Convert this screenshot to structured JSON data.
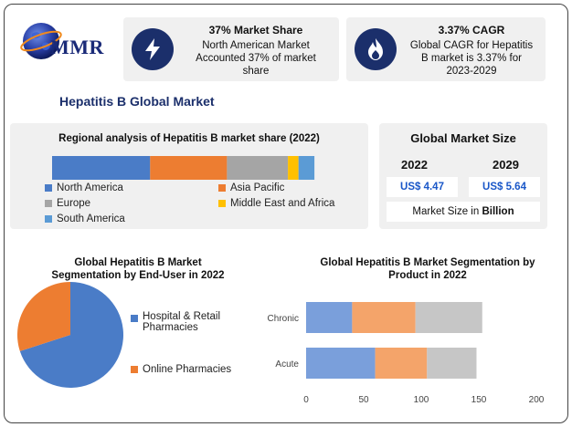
{
  "brand": {
    "logo_text": "MMR"
  },
  "kpis": [
    {
      "title": "37% Market Share",
      "body": [
        "North American Market",
        "Accounted 37% of market",
        "share"
      ],
      "icon": "lightning-icon"
    },
    {
      "title": "3.37% CAGR",
      "body": [
        "Global CAGR for Hepatitis",
        "B market is 3.37% for",
        "2023-2029"
      ],
      "icon": "flame-icon"
    }
  ],
  "main_title": "Hepatitis B Global Market",
  "regional": {
    "title": "Regional analysis of Hepatitis B market share (2022)",
    "legend": [
      "North America",
      "Asia Pacific",
      "Europe",
      "Middle East and Africa",
      "South America"
    ]
  },
  "market_size": {
    "title": "Global Market Size",
    "years": [
      "2022",
      "2029"
    ],
    "values": [
      "US$ 4.47",
      "US$ 5.64"
    ],
    "note_prefix": "Market Size in ",
    "note_unit": "Billion"
  },
  "end_user": {
    "title_line1": "Global Hepatitis B Market",
    "title_line2": "Segmentation by End-User in 2022",
    "legend": [
      "Hospital & Retail",
      "Pharmacies",
      "Online Pharmacies"
    ]
  },
  "product": {
    "title_line1": "Global Hepatitis B Market Segmentation by",
    "title_line2": "Product in 2022"
  },
  "colors": {
    "blue": "#4a7cc7",
    "orange": "#ed7d31",
    "gray": "#a5a5a5",
    "yellow": "#ffc000",
    "lightblue": "#5b9bd5",
    "navy": "#1b2f6b",
    "prod_blue": "#7a9fdb",
    "prod_orange": "#f4a46a",
    "prod_gray": "#c6c6c6"
  },
  "chart_data": [
    {
      "type": "bar",
      "orientation": "horizontal-stacked",
      "title": "Regional analysis of Hepatitis B market share (2022)",
      "categories": [
        "2022"
      ],
      "series": [
        {
          "name": "North America",
          "values": [
            37
          ]
        },
        {
          "name": "Asia Pacific",
          "values": [
            29
          ]
        },
        {
          "name": "Europe",
          "values": [
            23
          ]
        },
        {
          "name": "Middle East and Africa",
          "values": [
            4
          ]
        },
        {
          "name": "South America",
          "values": [
            6
          ]
        }
      ],
      "legend_position": "bottom"
    },
    {
      "type": "pie",
      "title": "Global Hepatitis B Market Segmentation by End-User in 2022",
      "categories": [
        "Hospital & Retail Pharmacies",
        "Online Pharmacies"
      ],
      "values": [
        70,
        30
      ],
      "legend_position": "right"
    },
    {
      "type": "bar",
      "orientation": "horizontal-stacked",
      "title": "Global Hepatitis B Market Segmentation by Product in 2022",
      "categories": [
        "Chronic",
        "Acute"
      ],
      "series": [
        {
          "values": [
            40,
            60
          ]
        },
        {
          "values": [
            55,
            45
          ]
        },
        {
          "values": [
            58,
            43
          ]
        }
      ],
      "xlim": [
        0,
        200
      ],
      "xticks": [
        0,
        50,
        100,
        150,
        200
      ],
      "grid": false
    }
  ]
}
